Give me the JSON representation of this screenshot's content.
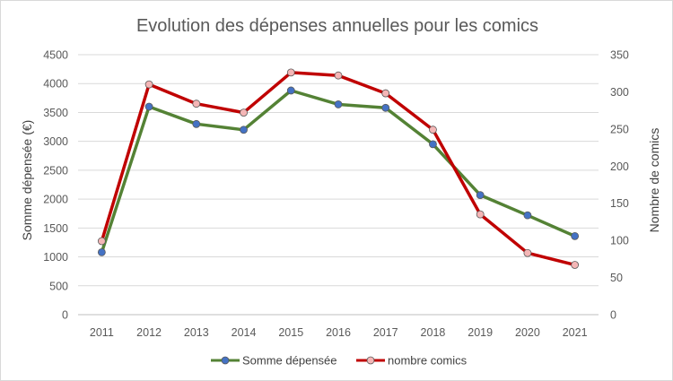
{
  "chart_data": {
    "type": "line",
    "title": "Evolution des dépenses annuelles pour les comics",
    "x": [
      "2011",
      "2012",
      "2013",
      "2014",
      "2015",
      "2016",
      "2017",
      "2018",
      "2019",
      "2020",
      "2021"
    ],
    "ylabel": "Somme dépensée (€)",
    "y2label": "Nombre de comics",
    "ylim": [
      0,
      4500
    ],
    "y2lim": [
      0,
      350
    ],
    "yticks": [
      "0",
      "500",
      "1000",
      "1500",
      "2000",
      "2500",
      "3000",
      "3500",
      "4000",
      "4500"
    ],
    "y2ticks": [
      "0",
      "50",
      "100",
      "150",
      "200",
      "250",
      "300",
      "350"
    ],
    "grid": true,
    "legend_position": "bottom",
    "series": [
      {
        "name": "Somme dépensée",
        "axis": "left",
        "color": "#548235",
        "marker_color": "#4472c4",
        "values": [
          1080,
          3600,
          3300,
          3200,
          3880,
          3640,
          3580,
          2950,
          2070,
          1720,
          1360
        ]
      },
      {
        "name": "nombre comics",
        "axis": "right",
        "color": "#c00000",
        "marker_color": "#f4b6b6",
        "values": [
          99,
          310,
          284,
          272,
          326,
          322,
          298,
          249,
          135,
          83,
          67
        ]
      }
    ]
  }
}
